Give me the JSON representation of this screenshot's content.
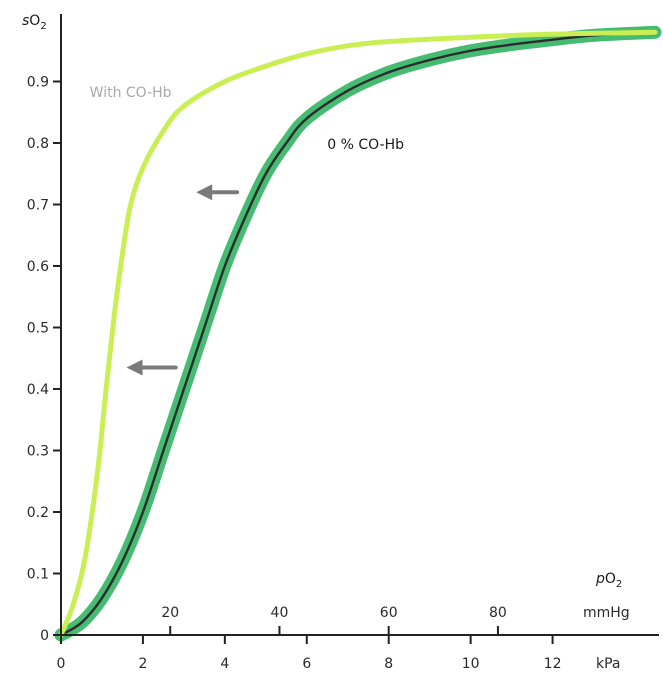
{
  "chart_data": {
    "type": "line",
    "title": "",
    "ylabel": "sO2",
    "xlabel_primary": "kPa",
    "xlabel_secondary": "mmHg",
    "xlabel_secondary_title": "pO2",
    "xlim": [
      0,
      14.5
    ],
    "ylim": [
      0,
      1.0
    ],
    "grid": false,
    "y_ticks": [
      0,
      0.1,
      0.2,
      0.3,
      0.4,
      0.5,
      0.6,
      0.7,
      0.8,
      0.9
    ],
    "y_tick_labels": [
      "0",
      "0.1",
      "0.2",
      "0.3",
      "0.4",
      "0.5",
      "0.6",
      "0.7",
      "0.8",
      "0.9"
    ],
    "x_ticks_kpa": [
      0,
      2,
      4,
      6,
      8,
      10,
      12
    ],
    "x_tick_labels_kpa": [
      "0",
      "2",
      "4",
      "6",
      "8",
      "10",
      "12"
    ],
    "x_ticks_mmhg": [
      20,
      40,
      60,
      80
    ],
    "x_tick_labels_mmhg": [
      "20",
      "40",
      "60",
      "80"
    ],
    "series": [
      {
        "name": "0 % CO-Hb",
        "color": "#2b2b2b",
        "band_color": "#3cb86a",
        "x": [
          0,
          0.5,
          1,
          1.5,
          2,
          2.5,
          3,
          3.5,
          4,
          4.5,
          5,
          5.5,
          6,
          7,
          8,
          9,
          10,
          11,
          12,
          13,
          14.5
        ],
        "y": [
          0,
          0.02,
          0.06,
          0.12,
          0.2,
          0.3,
          0.4,
          0.5,
          0.6,
          0.68,
          0.75,
          0.8,
          0.84,
          0.885,
          0.915,
          0.935,
          0.95,
          0.96,
          0.968,
          0.975,
          0.98
        ]
      },
      {
        "name": "With CO-Hb",
        "color": "#c9ef55",
        "x": [
          0,
          0.3,
          0.6,
          0.9,
          1.1,
          1.3,
          1.5,
          1.7,
          2,
          2.5,
          3,
          4,
          5,
          6,
          7,
          8,
          10,
          12,
          14.5
        ],
        "y": [
          0,
          0.05,
          0.13,
          0.27,
          0.4,
          0.52,
          0.62,
          0.7,
          0.76,
          0.82,
          0.86,
          0.9,
          0.925,
          0.945,
          0.958,
          0.965,
          0.972,
          0.977,
          0.98
        ]
      }
    ],
    "annotations": [
      {
        "text": "With CO-Hb",
        "x": 0.7,
        "y": 0.875
      },
      {
        "text": "0 % CO-Hb",
        "x": 6.5,
        "y": 0.79
      }
    ],
    "arrows": [
      {
        "direction": "left",
        "from": [
          4.3,
          0.72
        ],
        "to": [
          3.3,
          0.72
        ]
      },
      {
        "direction": "left",
        "from": [
          2.8,
          0.435
        ],
        "to": [
          1.6,
          0.435
        ]
      }
    ]
  }
}
